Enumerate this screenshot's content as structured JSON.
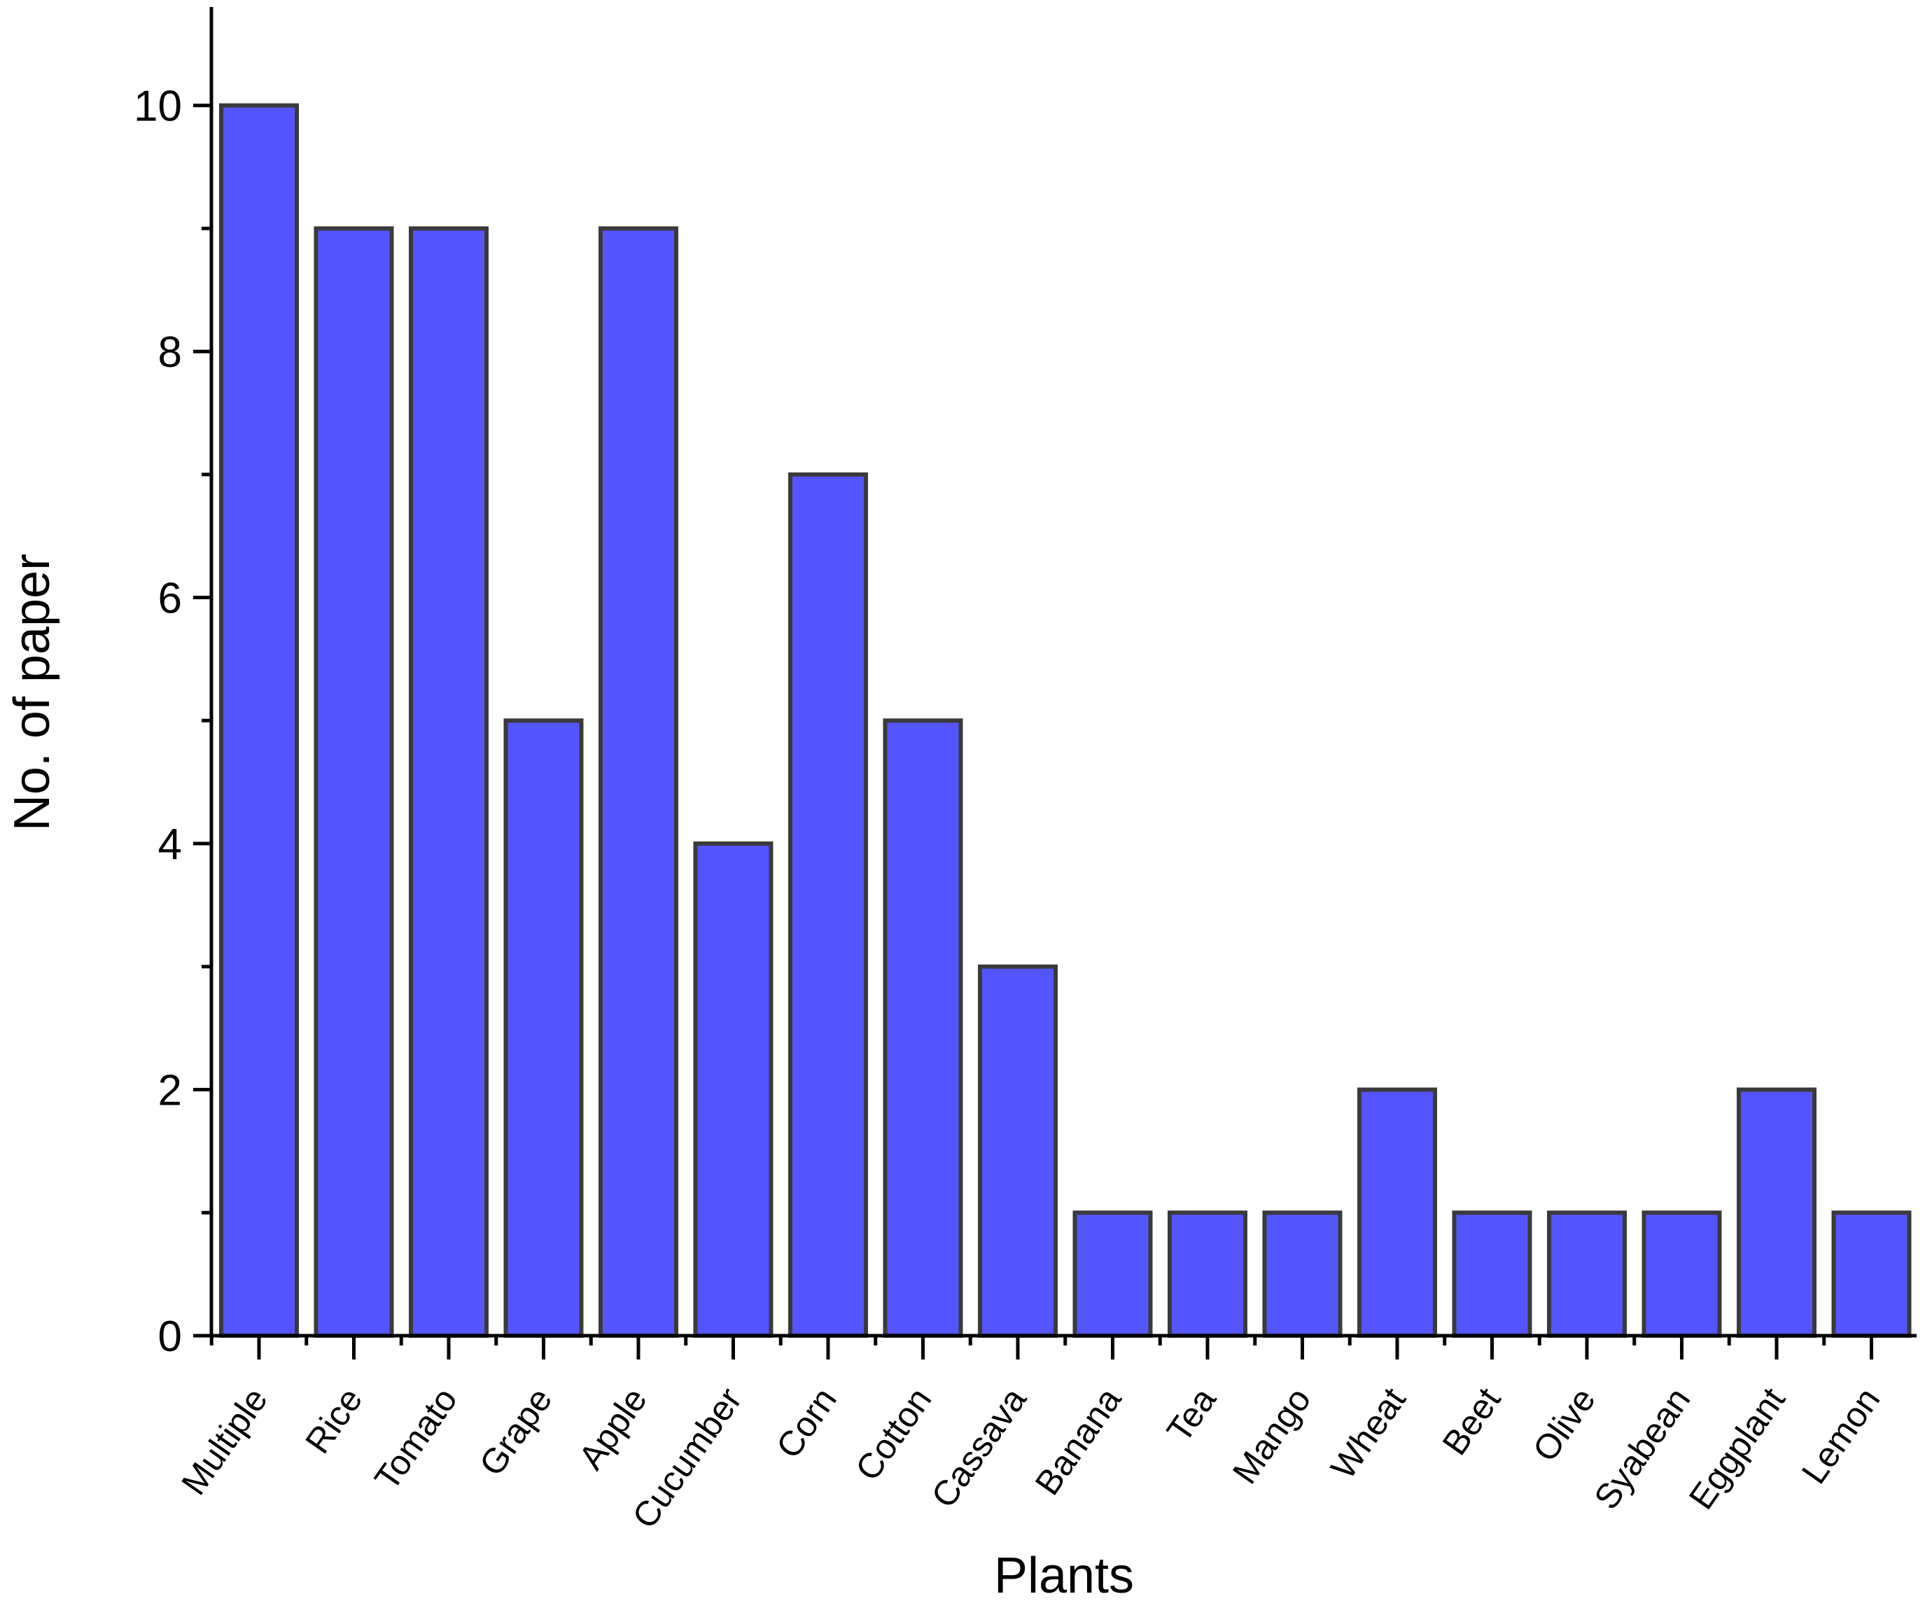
{
  "chart_data": {
    "type": "bar",
    "title": "",
    "xlabel": "Plants",
    "ylabel": "No. of paper",
    "ylim": [
      0,
      10.8
    ],
    "yticks": [
      0,
      2,
      4,
      6,
      8,
      10
    ],
    "categories": [
      "Multiple",
      "Rice",
      "Tomato",
      "Grape",
      "Apple",
      "Cucumber",
      "Corn",
      "Cotton",
      "Cassava",
      "Banana",
      "Tea",
      "Mango",
      "Wheat",
      "Beet",
      "Olive",
      "Syabean",
      "Eggplant",
      "Lemon"
    ],
    "values": [
      10,
      9,
      9,
      5,
      9,
      4,
      7,
      5,
      3,
      1,
      1,
      1,
      2,
      1,
      1,
      1,
      2,
      1
    ],
    "grid": false,
    "legend": "none",
    "bar_color": "#5555ff",
    "bar_edge_color": "#3a3a3a"
  }
}
